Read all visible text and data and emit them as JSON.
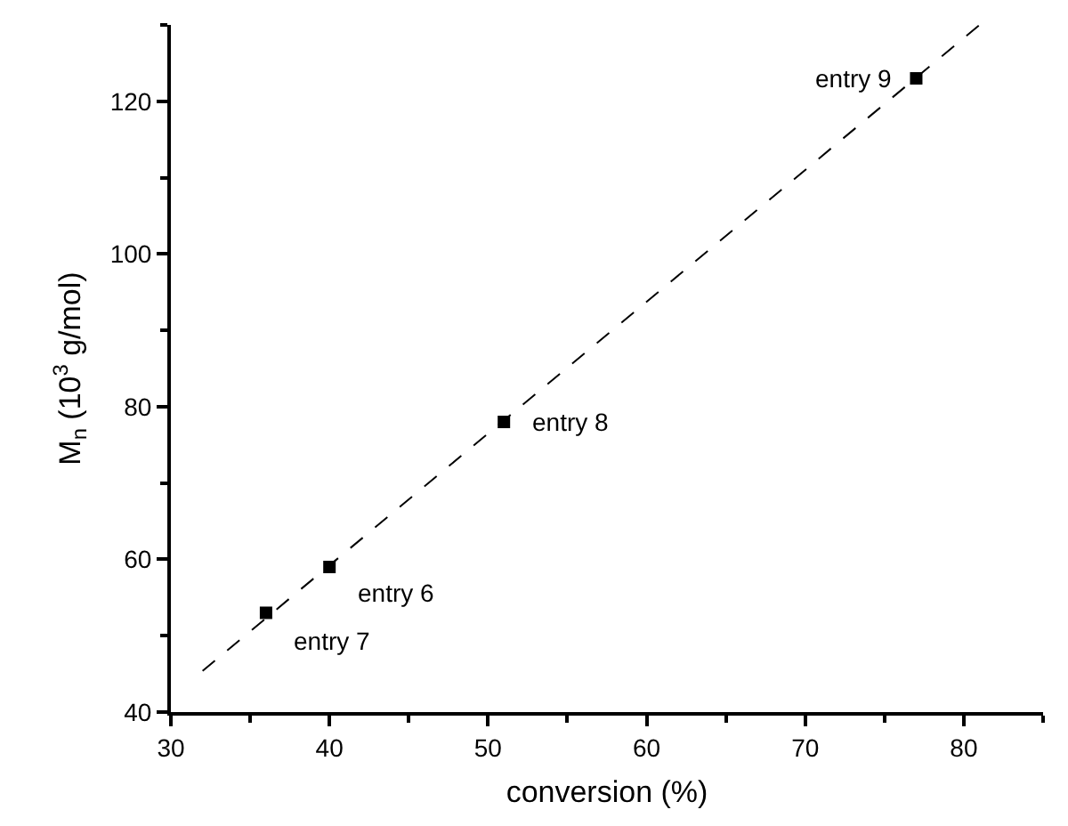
{
  "chart_data": {
    "type": "scatter",
    "xlabel": "conversion (%)",
    "ylabel": "M$_{n}$ (10$^{3}$ g/mol)",
    "series": [
      {
        "color": "#000000",
        "marker": "square",
        "x": [
          36,
          40,
          51,
          77
        ],
        "values": [
          53,
          59,
          78,
          123
        ]
      },
      {
        "type": "line",
        "color": "#000000",
        "line_style": "dashed",
        "marker": "none",
        "x": [
          32,
          81
        ],
        "values": [
          45.4,
          130
        ]
      }
    ],
    "annotations": [
      {
        "text": "entry 7",
        "x": 36,
        "y": 53
      },
      {
        "text": "entry 6",
        "x": 40,
        "y": 59
      },
      {
        "text": "entry 8",
        "x": 51,
        "y": 78
      },
      {
        "text": "entry 9",
        "x": 77,
        "y": 123
      }
    ],
    "xlim": [
      30,
      85
    ],
    "xticks": [
      30,
      {
        "value": 35,
        "label": null
      },
      40,
      {
        "value": 45,
        "label": null
      },
      50,
      {
        "value": 55,
        "label": null
      },
      60,
      {
        "value": 65,
        "label": null
      },
      70,
      {
        "value": 75,
        "label": null
      },
      80,
      {
        "value": 85,
        "label": null
      }
    ],
    "ylim": [
      40,
      130
    ],
    "yticks": [
      40,
      {
        "value": 50,
        "label": null
      },
      60,
      {
        "value": 70,
        "label": null
      },
      80,
      {
        "value": 90,
        "label": null
      },
      100,
      {
        "value": 110,
        "label": null
      },
      120,
      {
        "value": 130,
        "label": null
      }
    ],
    "grid": false
  }
}
